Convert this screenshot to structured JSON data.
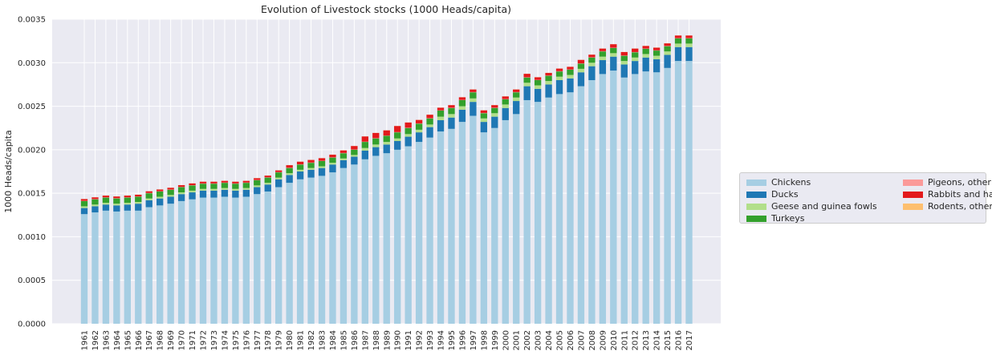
{
  "chart_data": {
    "type": "bar",
    "stacked": true,
    "title": "Evolution of Livestock stocks (1000 Heads/capita)",
    "xlabel": "",
    "ylabel": "1000 Heads/capita",
    "ylim": [
      0,
      0.0035
    ],
    "yticks": [
      "0.0000",
      "0.0005",
      "0.0010",
      "0.0015",
      "0.0020",
      "0.0025",
      "0.0030",
      "0.0035"
    ],
    "grid": true,
    "legend_position": "right",
    "categories": [
      "1961",
      "1962",
      "1963",
      "1964",
      "1965",
      "1966",
      "1967",
      "1968",
      "1969",
      "1970",
      "1971",
      "1972",
      "1973",
      "1974",
      "1975",
      "1976",
      "1977",
      "1978",
      "1979",
      "1980",
      "1981",
      "1982",
      "1983",
      "1984",
      "1985",
      "1986",
      "1987",
      "1988",
      "1989",
      "1990",
      "1991",
      "1992",
      "1993",
      "1994",
      "1995",
      "1996",
      "1997",
      "1998",
      "1999",
      "2000",
      "2001",
      "2002",
      "2003",
      "2004",
      "2005",
      "2006",
      "2007",
      "2008",
      "2009",
      "2010",
      "2011",
      "2012",
      "2013",
      "2014",
      "2015",
      "2016",
      "2017"
    ],
    "series": [
      {
        "name": "Chickens",
        "color": "#a6cee3",
        "values": [
          0.00126,
          0.00128,
          0.0013,
          0.00129,
          0.0013,
          0.0013,
          0.00134,
          0.00136,
          0.00138,
          0.00141,
          0.00143,
          0.00145,
          0.00145,
          0.00146,
          0.00145,
          0.00146,
          0.00149,
          0.00152,
          0.00157,
          0.00162,
          0.00166,
          0.00168,
          0.0017,
          0.00174,
          0.00179,
          0.00183,
          0.00189,
          0.00193,
          0.00196,
          0.002,
          0.00204,
          0.00209,
          0.00214,
          0.00221,
          0.00224,
          0.00232,
          0.00239,
          0.0022,
          0.00225,
          0.00234,
          0.00241,
          0.00257,
          0.00255,
          0.0026,
          0.00264,
          0.00266,
          0.00273,
          0.0028,
          0.00287,
          0.00291,
          0.00283,
          0.00287,
          0.0029,
          0.00289,
          0.00294,
          0.00302,
          0.00302
        ]
      },
      {
        "name": "Ducks",
        "color": "#1f78b4",
        "values": [
          7e-05,
          7e-05,
          7e-05,
          7e-05,
          7e-05,
          8e-05,
          8e-05,
          8e-05,
          8e-05,
          8e-05,
          8e-05,
          8e-05,
          8e-05,
          8e-05,
          8e-05,
          8e-05,
          8e-05,
          8e-05,
          9e-05,
          9e-05,
          9e-05,
          9e-05,
          9e-05,
          9e-05,
          9e-05,
          9e-05,
          0.0001,
          0.0001,
          0.0001,
          0.0001,
          0.00011,
          0.00011,
          0.00012,
          0.00013,
          0.00013,
          0.00014,
          0.00016,
          0.00012,
          0.00013,
          0.00014,
          0.00015,
          0.00016,
          0.00015,
          0.00015,
          0.00016,
          0.00016,
          0.00016,
          0.00016,
          0.00016,
          0.00016,
          0.00015,
          0.00015,
          0.00016,
          0.00015,
          0.00015,
          0.00016,
          0.00016
        ]
      },
      {
        "name": "Geese and guinea fowls",
        "color": "#b2df8a",
        "values": [
          2e-05,
          2e-05,
          2e-05,
          2e-05,
          2e-05,
          2e-05,
          2e-05,
          2e-05,
          2e-05,
          2e-05,
          2e-05,
          2e-05,
          2e-05,
          2e-05,
          2e-05,
          2e-05,
          2e-05,
          2e-05,
          2e-05,
          2e-05,
          2e-05,
          2e-05,
          2e-05,
          2e-05,
          2e-05,
          2e-05,
          3e-05,
          3e-05,
          3e-05,
          3e-05,
          3e-05,
          3e-05,
          3e-05,
          4e-05,
          4e-05,
          4e-05,
          4e-05,
          4e-05,
          4e-05,
          4e-05,
          4e-05,
          4e-05,
          4e-05,
          4e-05,
          4e-05,
          4e-05,
          4e-05,
          4e-05,
          4e-05,
          4e-05,
          4e-05,
          4e-05,
          4e-05,
          4e-05,
          4e-05,
          4e-05,
          4e-05
        ]
      },
      {
        "name": "Turkeys",
        "color": "#33a02c",
        "values": [
          6e-05,
          6e-05,
          6e-05,
          6e-05,
          6e-05,
          6e-05,
          6e-05,
          6e-05,
          6e-05,
          6e-05,
          6e-05,
          6e-05,
          6e-05,
          6e-05,
          6e-05,
          6e-05,
          6e-05,
          6e-05,
          6e-05,
          6e-05,
          6e-05,
          6e-05,
          6e-05,
          6e-05,
          6e-05,
          6e-05,
          7e-05,
          7e-05,
          7e-05,
          7e-05,
          7e-05,
          7e-05,
          7e-05,
          7e-05,
          7e-05,
          7e-05,
          7e-05,
          6e-05,
          6e-05,
          6e-05,
          6e-05,
          6e-05,
          6e-05,
          6e-05,
          6e-05,
          6e-05,
          6e-05,
          6e-05,
          6e-05,
          6e-05,
          6e-05,
          6e-05,
          6e-05,
          6e-05,
          6e-05,
          6e-05,
          6e-05
        ]
      },
      {
        "name": "Pigeons, other birds",
        "color": "#fb9a99",
        "values": [
          3e-06,
          3e-06,
          3e-06,
          3e-06,
          3e-06,
          3e-06,
          3e-06,
          3e-06,
          3e-06,
          3e-06,
          3e-06,
          3e-06,
          3e-06,
          3e-06,
          3e-06,
          3e-06,
          3e-06,
          3e-06,
          3e-06,
          3e-06,
          3e-06,
          3e-06,
          3e-06,
          3e-06,
          3e-06,
          3e-06,
          3e-06,
          3e-06,
          3e-06,
          3e-06,
          3e-06,
          3e-06,
          3e-06,
          3e-06,
          3e-06,
          3e-06,
          3e-06,
          3e-06,
          3e-06,
          3e-06,
          3e-06,
          3e-06,
          3e-06,
          3e-06,
          3e-06,
          3e-06,
          3e-06,
          3e-06,
          3e-06,
          3e-06,
          3e-06,
          3e-06,
          3e-06,
          3e-06,
          3e-06,
          3e-06,
          3e-06
        ]
      },
      {
        "name": "Rabbits and hares",
        "color": "#e31a1c",
        "values": [
          2e-05,
          2e-05,
          2e-05,
          2e-05,
          2e-05,
          2e-05,
          2e-05,
          2e-05,
          2e-05,
          2e-05,
          2e-05,
          2e-05,
          2e-05,
          2e-05,
          2e-05,
          2e-05,
          2e-05,
          2e-05,
          2e-05,
          3e-05,
          3e-05,
          3e-05,
          3e-05,
          3e-05,
          3e-05,
          4e-05,
          6e-05,
          6e-05,
          6e-05,
          7e-05,
          6e-05,
          4e-05,
          4e-05,
          3e-05,
          3e-05,
          3e-05,
          3e-05,
          3e-05,
          3e-05,
          3e-05,
          3e-05,
          4e-05,
          3e-05,
          3e-05,
          3e-05,
          3e-05,
          4e-05,
          3e-05,
          3e-05,
          4e-05,
          4e-05,
          4e-05,
          3e-05,
          3e-05,
          3e-05,
          3e-05,
          3e-05
        ]
      },
      {
        "name": "Rodents, other",
        "color": "#fdbf6f",
        "values": [
          1e-06,
          1e-06,
          1e-06,
          1e-06,
          1e-06,
          1e-06,
          1e-06,
          1e-06,
          1e-06,
          1e-06,
          1e-06,
          1e-06,
          1e-06,
          1e-06,
          1e-06,
          1e-06,
          1e-06,
          1e-06,
          1e-06,
          1e-06,
          1e-06,
          1e-06,
          1e-06,
          1e-06,
          1e-06,
          1e-06,
          1e-06,
          1e-06,
          1e-06,
          1e-06,
          1e-06,
          1e-06,
          1e-06,
          1e-06,
          1e-06,
          1e-06,
          1e-06,
          1e-06,
          1e-06,
          1e-06,
          1e-06,
          1e-06,
          1e-06,
          1e-06,
          1e-06,
          1e-06,
          1e-06,
          1e-06,
          1e-06,
          1e-06,
          1e-06,
          1e-06,
          1e-06,
          1e-06,
          1e-06,
          1e-06,
          1e-06
        ]
      }
    ]
  }
}
